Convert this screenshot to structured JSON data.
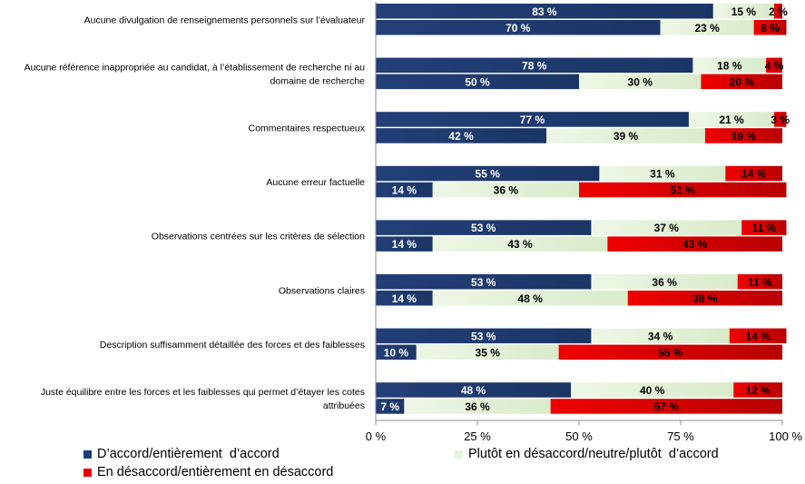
{
  "chart_data": {
    "type": "bar",
    "orientation": "horizontal",
    "stacked": true,
    "xlim": [
      0,
      100
    ],
    "x_ticks": [
      "0 %",
      "25 %",
      "50 %",
      "75 %",
      "100 %"
    ],
    "categories": [
      {
        "label_lines": [
          "Aucune divulgation de renseignements personnels sur l’évaluateur"
        ],
        "bars": [
          [
            83,
            15,
            2
          ],
          [
            70,
            23,
            8
          ]
        ]
      },
      {
        "label_lines": [
          "Aucune référence inappropriée au candidat, à l’établissement de recherche ni au",
          "domaine de recherche"
        ],
        "bars": [
          [
            78,
            18,
            4
          ],
          [
            50,
            30,
            20
          ]
        ]
      },
      {
        "label_lines": [
          "Commentaires respectueux"
        ],
        "bars": [
          [
            77,
            21,
            3
          ],
          [
            42,
            39,
            19
          ]
        ]
      },
      {
        "label_lines": [
          "Aucune erreur factuelle"
        ],
        "bars": [
          [
            55,
            31,
            14
          ],
          [
            14,
            36,
            51
          ]
        ]
      },
      {
        "label_lines": [
          "Observations centrées sur les critères de sélection"
        ],
        "bars": [
          [
            53,
            37,
            11
          ],
          [
            14,
            43,
            43
          ]
        ]
      },
      {
        "label_lines": [
          "Observations claires"
        ],
        "bars": [
          [
            53,
            36,
            11
          ],
          [
            14,
            48,
            38
          ]
        ]
      },
      {
        "label_lines": [
          "Description suffisamment détaillée des forces et des faiblesses"
        ],
        "bars": [
          [
            53,
            34,
            14
          ],
          [
            10,
            35,
            55
          ]
        ]
      },
      {
        "label_lines": [
          "Juste équilibre entre les forces et les faiblesses qui permet d’étayer les cotes",
          "attribuées"
        ],
        "bars": [
          [
            48,
            40,
            12
          ],
          [
            7,
            36,
            57
          ]
        ]
      }
    ],
    "series": [
      {
        "name": "D’accord/entièrement  d’accord",
        "color": "#1f3f7a",
        "label_color": "#ffffff"
      },
      {
        "name": "Plutôt en désaccord/neutre/plutôt  d’accord",
        "color": "#e6f3dc",
        "label_color": "#000000"
      },
      {
        "name": "En désaccord/entièrement en désaccord",
        "color": "#e80000",
        "label_color": "#000000"
      }
    ],
    "value_suffix": " %",
    "legend_position": "bottom",
    "grid": false
  }
}
